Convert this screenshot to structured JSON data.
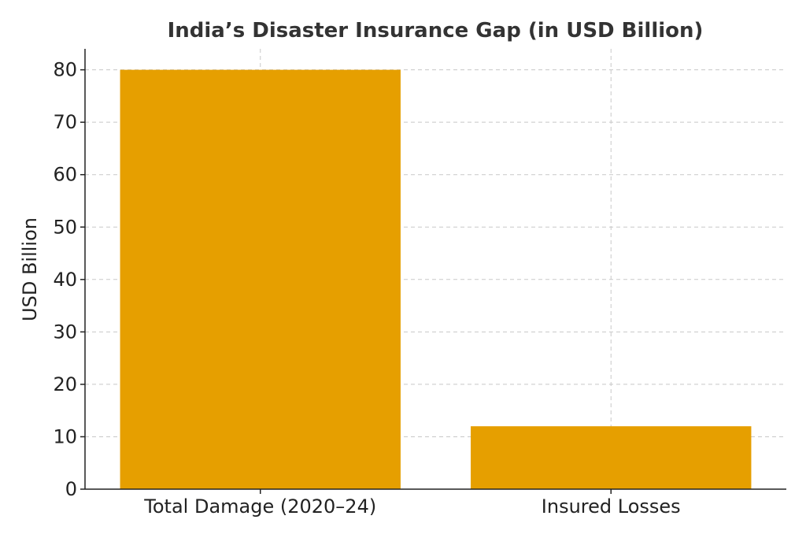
{
  "chart_data": {
    "type": "bar",
    "title": "India’s Disaster Insurance Gap (in USD Billion)",
    "xlabel": "",
    "ylabel": "USD Billion",
    "categories": [
      "Total Damage (2020–24)",
      "Insured Losses"
    ],
    "values": [
      80,
      12
    ],
    "ylim": [
      0,
      84
    ],
    "yticks": [
      0,
      10,
      20,
      30,
      40,
      50,
      60,
      70,
      80
    ],
    "grid": true,
    "bar_color": "#e69f00"
  }
}
